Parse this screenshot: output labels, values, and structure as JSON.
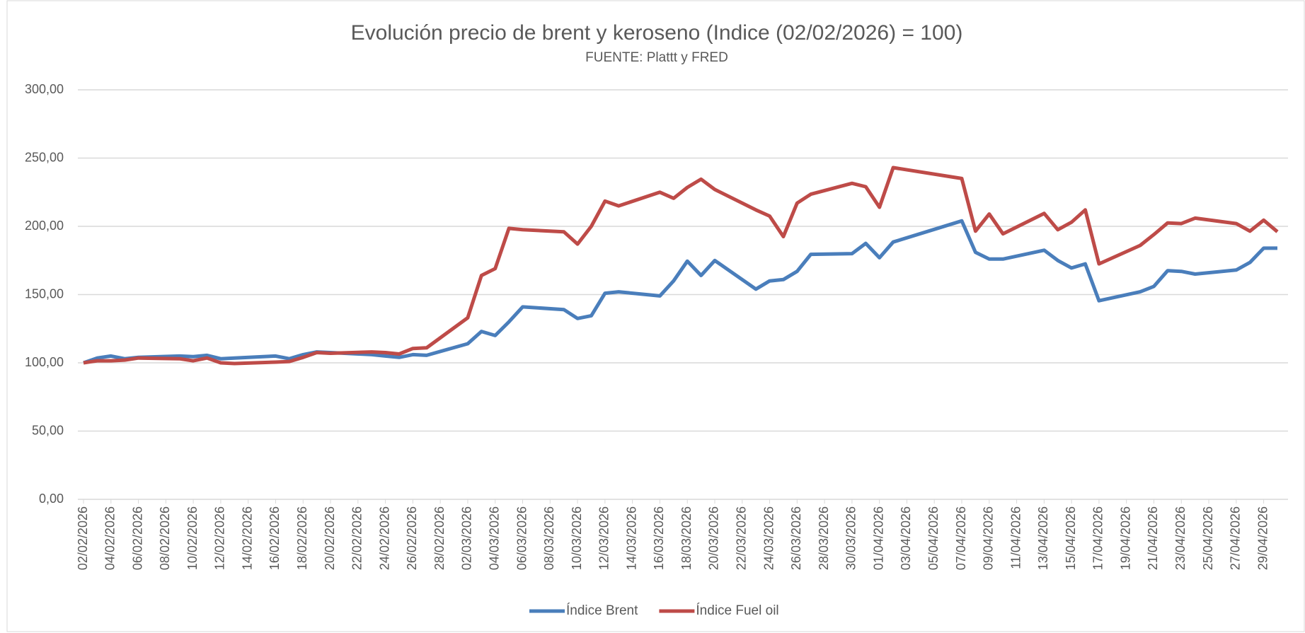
{
  "chart_data": {
    "type": "line",
    "title": "Evolución precio de brent y keroseno (Indice (02/02/2026) = 100)",
    "subtitle": "FUENTE: Plattt y FRED",
    "x": [
      "02/02/2026",
      "03/02/2026",
      "04/02/2026",
      "05/02/2026",
      "06/02/2026",
      "09/02/2026",
      "10/02/2026",
      "11/02/2026",
      "12/02/2026",
      "13/02/2026",
      "16/02/2026",
      "17/02/2026",
      "18/02/2026",
      "19/02/2026",
      "20/02/2026",
      "23/02/2026",
      "24/02/2026",
      "25/02/2026",
      "26/02/2026",
      "27/02/2026",
      "02/03/2026",
      "03/03/2026",
      "04/03/2026",
      "05/03/2026",
      "06/03/2026",
      "09/03/2026",
      "10/03/2026",
      "11/03/2026",
      "12/03/2026",
      "13/03/2026",
      "16/03/2026",
      "17/03/2026",
      "18/03/2026",
      "19/03/2026",
      "20/03/2026",
      "23/03/2026",
      "24/03/2026",
      "25/03/2026",
      "26/03/2026",
      "27/03/2026",
      "30/03/2026",
      "31/03/2026",
      "01/04/2026",
      "02/04/2026",
      "07/04/2026",
      "08/04/2026",
      "09/04/2026",
      "10/04/2026",
      "13/04/2026",
      "14/04/2026",
      "15/04/2026",
      "16/04/2026",
      "17/04/2026",
      "20/04/2026",
      "21/04/2026",
      "22/04/2026",
      "23/04/2026",
      "24/04/2026",
      "27/04/2026",
      "28/04/2026",
      "29/04/2026",
      "30/04/2026"
    ],
    "series": [
      {
        "name": "Índice Brent",
        "color": "#4a7ebb",
        "values": [
          100,
          103.5,
          105,
          103,
          104,
          105,
          104.5,
          105.5,
          103,
          103.5,
          105,
          103,
          106,
          108,
          107.5,
          106,
          105,
          104,
          106,
          105.5,
          114,
          123,
          120,
          130,
          141,
          139,
          132.5,
          134.5,
          151,
          152,
          149,
          160,
          174.5,
          164,
          175,
          154,
          160,
          161,
          167,
          179.5,
          180,
          187.5,
          177,
          188.5,
          204,
          181,
          176,
          176,
          182.5,
          175,
          169.5,
          172.5,
          145.5,
          152,
          156,
          167.5,
          167,
          165,
          168,
          173.5,
          184,
          184
        ]
      },
      {
        "name": "Índice Fuel oil",
        "color": "#be4b48",
        "values": [
          100,
          101.5,
          101.5,
          102,
          103.5,
          103,
          101.5,
          103.5,
          100,
          99.5,
          100.5,
          101,
          104,
          107.5,
          107,
          108,
          107.5,
          106.5,
          110.5,
          111,
          133,
          164,
          169,
          198.5,
          197.5,
          196,
          187,
          200,
          218.5,
          215,
          225,
          220.5,
          228.5,
          234.5,
          227,
          212,
          207.5,
          192.5,
          217,
          223.5,
          231.5,
          229,
          214,
          243,
          235,
          196.5,
          209,
          194.5,
          209.5,
          197.5,
          203,
          212,
          172.5,
          186,
          194,
          202.5,
          202,
          206,
          202,
          196.5,
          204.5,
          196
        ]
      }
    ],
    "xlim": [
      "02/02/2026",
      "30/04/2026"
    ],
    "xticks": [
      "02/02/2026",
      "04/02/2026",
      "06/02/2026",
      "08/02/2026",
      "10/02/2026",
      "12/02/2026",
      "14/02/2026",
      "16/02/2026",
      "18/02/2026",
      "20/02/2026",
      "22/02/2026",
      "24/02/2026",
      "26/02/2026",
      "28/02/2026",
      "02/03/2026",
      "04/03/2026",
      "06/03/2026",
      "08/03/2026",
      "10/03/2026",
      "12/03/2026",
      "14/03/2026",
      "16/03/2026",
      "18/03/2026",
      "20/03/2026",
      "22/03/2026",
      "24/03/2026",
      "26/03/2026",
      "28/03/2026",
      "30/03/2026",
      "01/04/2026",
      "03/04/2026",
      "05/04/2026",
      "07/04/2026",
      "09/04/2026",
      "11/04/2026",
      "13/04/2026",
      "15/04/2026",
      "17/04/2026",
      "19/04/2026",
      "21/04/2026",
      "23/04/2026",
      "25/04/2026",
      "27/04/2026",
      "29/04/2026"
    ],
    "ylim": [
      0,
      300
    ],
    "yticks": [
      {
        "value": 0,
        "label": "0,00"
      },
      {
        "value": 50,
        "label": "50,00"
      },
      {
        "value": 100,
        "label": "100,00"
      },
      {
        "value": 150,
        "label": "150,00"
      },
      {
        "value": 200,
        "label": "200,00"
      },
      {
        "value": 250,
        "label": "250,00"
      },
      {
        "value": 300,
        "label": "300,00"
      }
    ],
    "grid": true,
    "legend": "bottom"
  }
}
